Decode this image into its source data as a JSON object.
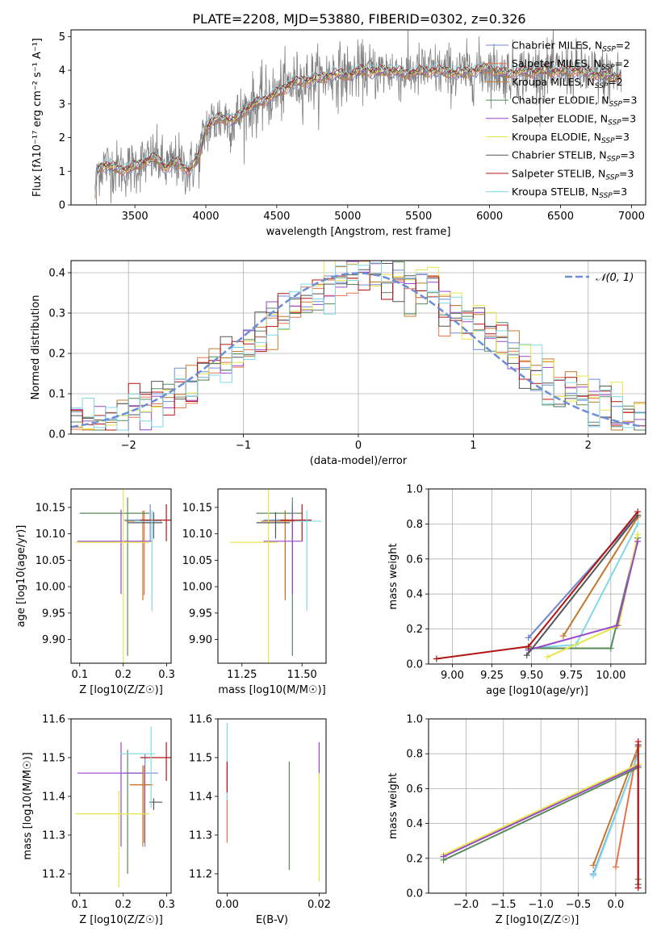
{
  "figure_title": "PLATE=2208, MJD=53880, FIBERID=0302, z=0.326",
  "colors": {
    "Chabrier MILES": "#6b8ed6",
    "Salpeter MILES": "#e8734a",
    "Kroupa MILES": "#c4782d",
    "Chabrier ELODIE": "#5a8a5a",
    "Salpeter ELODIE": "#9a47c8",
    "Kroupa ELODIE": "#e6e64c",
    "Chabrier STELIB": "#555555",
    "Salpeter STELIB": "#b41414",
    "Kroupa STELIB": "#7fd8e6",
    "observed": "#808080",
    "normal": "#6a8fd8"
  },
  "chart_data": [
    {
      "id": "spectrum",
      "type": "line",
      "xlabel": "wavelength [Angstrom, rest frame]",
      "ylabel": "Flux [f_λ 10^-17 erg cm^-2 s^-1 A^-1]",
      "xlim": [
        3050,
        7100
      ],
      "ylim": [
        0,
        5.2
      ],
      "xticks": [
        3500,
        4000,
        4500,
        5000,
        5500,
        6000,
        6500,
        7000
      ],
      "yticks": [
        0,
        1,
        2,
        3,
        4,
        5
      ],
      "legend_loc": "upper right",
      "observed_range": [
        3220,
        6930
      ],
      "model_knots": [
        [
          3220,
          0.3
        ],
        [
          3230,
          1.05
        ],
        [
          3280,
          1.2
        ],
        [
          3350,
          1.1
        ],
        [
          3450,
          1.05
        ],
        [
          3550,
          1.25
        ],
        [
          3650,
          1.4
        ],
        [
          3720,
          1.1
        ],
        [
          3800,
          1.3
        ],
        [
          3880,
          1.0
        ],
        [
          3950,
          1.4
        ],
        [
          4000,
          2.3
        ],
        [
          4100,
          2.6
        ],
        [
          4200,
          2.5
        ],
        [
          4300,
          2.9
        ],
        [
          4400,
          3.1
        ],
        [
          4500,
          3.3
        ],
        [
          4600,
          3.6
        ],
        [
          4700,
          3.7
        ],
        [
          4800,
          3.75
        ],
        [
          4900,
          3.9
        ],
        [
          5000,
          3.85
        ],
        [
          5100,
          4.0
        ],
        [
          5200,
          3.95
        ],
        [
          5300,
          4.0
        ],
        [
          5400,
          3.9
        ],
        [
          5500,
          3.95
        ],
        [
          5600,
          4.0
        ],
        [
          5700,
          3.95
        ],
        [
          5800,
          3.9
        ],
        [
          5900,
          4.0
        ],
        [
          6000,
          4.05
        ],
        [
          6100,
          3.9
        ],
        [
          6200,
          3.95
        ],
        [
          6300,
          3.95
        ],
        [
          6400,
          4.0
        ],
        [
          6500,
          3.95
        ],
        [
          6600,
          4.0
        ],
        [
          6700,
          3.9
        ],
        [
          6800,
          3.85
        ],
        [
          6930,
          3.8
        ]
      ],
      "series": [
        {
          "name": "Chabrier MILES, N_SSP=2",
          "color_key": "Chabrier MILES"
        },
        {
          "name": "Salpeter MILES, N_SSP=2",
          "color_key": "Salpeter MILES"
        },
        {
          "name": "Kroupa MILES, N_SSP=2",
          "color_key": "Kroupa MILES"
        },
        {
          "name": "Chabrier ELODIE, N_SSP=3",
          "color_key": "Chabrier ELODIE"
        },
        {
          "name": "Salpeter ELODIE, N_SSP=3",
          "color_key": "Salpeter ELODIE"
        },
        {
          "name": "Kroupa ELODIE, N_SSP=3",
          "color_key": "Kroupa ELODIE"
        },
        {
          "name": "Chabrier STELIB, N_SSP=3",
          "color_key": "Chabrier STELIB"
        },
        {
          "name": "Salpeter STELIB, N_SSP=3",
          "color_key": "Salpeter STELIB"
        },
        {
          "name": "Kroupa STELIB, N_SSP=3",
          "color_key": "Kroupa STELIB"
        }
      ]
    },
    {
      "id": "residuals",
      "type": "histogram",
      "xlabel": "(data-model)/error",
      "ylabel": "Normed distribution",
      "xlim": [
        -2.5,
        2.5
      ],
      "ylim": [
        0,
        0.43
      ],
      "xticks": [
        -2,
        -1,
        0,
        1,
        2
      ],
      "yticks": [
        0.0,
        0.1,
        0.2,
        0.3,
        0.4
      ],
      "grid": true,
      "bin_width": 0.1,
      "reference_label": "𝒩(0, 1)",
      "legend_loc": "upper right"
    },
    {
      "id": "age_vs_Z",
      "type": "errorbar",
      "xlabel": "Z [log10(Z/Z☉)]",
      "ylabel": "age  [log10(age/yr)]",
      "xlim": [
        0.08,
        0.31
      ],
      "ylim": [
        9.855,
        10.185
      ],
      "xticks": [
        0.1,
        0.2,
        0.3
      ],
      "yticks": [
        9.9,
        9.95,
        10.0,
        10.05,
        10.1,
        10.15
      ],
      "points": [
        {
          "c": "Chabrier MILES",
          "x": 0.262,
          "xerr": [
            0.06,
            0.02
          ],
          "y": 10.126,
          "yerr": [
            0.04,
            0.03
          ]
        },
        {
          "c": "Salpeter MILES",
          "x": 0.248,
          "xerr": [
            0.03,
            0.04
          ],
          "y": 10.124,
          "yerr": [
            0.14,
            0.02
          ]
        },
        {
          "c": "Kroupa MILES",
          "x": 0.245,
          "xerr": [
            0.04,
            0.03
          ],
          "y": 10.124,
          "yerr": [
            0.15,
            0.02
          ]
        },
        {
          "c": "Chabrier ELODIE",
          "x": 0.21,
          "xerr": [
            0.11,
            0.05
          ],
          "y": 10.139,
          "yerr": [
            0.27,
            0.03
          ]
        },
        {
          "c": "Salpeter ELODIE",
          "x": 0.195,
          "xerr": [
            0.1,
            0.07
          ],
          "y": 10.086,
          "yerr": [
            0.1,
            0.06
          ]
        },
        {
          "c": "Kroupa ELODIE",
          "x": 0.2,
          "xerr": [
            0.11,
            0.06
          ],
          "y": 10.084,
          "yerr": [
            0.25,
            0.1
          ]
        },
        {
          "c": "Chabrier STELIB",
          "x": 0.27,
          "xerr": [
            0.06,
            0.02
          ],
          "y": 10.121,
          "yerr": [
            0.03,
            0.02
          ]
        },
        {
          "c": "Salpeter STELIB",
          "x": 0.299,
          "xerr": [
            0.06,
            0.01
          ],
          "y": 10.126,
          "yerr": [
            0.04,
            0.03
          ]
        },
        {
          "c": "Kroupa STELIB",
          "x": 0.266,
          "xerr": [
            0.04,
            0.02
          ],
          "y": 10.124,
          "yerr": [
            0.17,
            0.02
          ]
        }
      ]
    },
    {
      "id": "age_vs_mass",
      "type": "errorbar",
      "xlabel": "mass [log10(M/M☉)]",
      "ylabel": "",
      "xlim": [
        11.15,
        11.6
      ],
      "ylim": [
        9.855,
        10.185
      ],
      "xticks": [
        11.25,
        11.5
      ],
      "yticks": [
        9.9,
        9.95,
        10.0,
        10.05,
        10.1,
        10.15
      ],
      "points": [
        {
          "c": "Chabrier MILES",
          "x": 11.46,
          "xerr": [
            0.12,
            0.06
          ],
          "y": 10.126,
          "yerr": [
            0.04,
            0.03
          ]
        },
        {
          "c": "Salpeter MILES",
          "x": 11.43,
          "xerr": [
            0.1,
            0.06
          ],
          "y": 10.124,
          "yerr": [
            0.14,
            0.02
          ]
        },
        {
          "c": "Kroupa MILES",
          "x": 11.43,
          "xerr": [
            0.1,
            0.05
          ],
          "y": 10.124,
          "yerr": [
            0.15,
            0.02
          ]
        },
        {
          "c": "Chabrier ELODIE",
          "x": 11.46,
          "xerr": [
            0.15,
            0.04
          ],
          "y": 10.139,
          "yerr": [
            0.27,
            0.03
          ]
        },
        {
          "c": "Salpeter ELODIE",
          "x": 11.46,
          "xerr": [
            0.12,
            0.04
          ],
          "y": 10.086,
          "yerr": [
            0.1,
            0.06
          ]
        },
        {
          "c": "Kroupa ELODIE",
          "x": 11.36,
          "xerr": [
            0.16,
            0.04
          ],
          "y": 10.084,
          "yerr": [
            0.25,
            0.1
          ]
        },
        {
          "c": "Chabrier STELIB",
          "x": 11.39,
          "xerr": [
            0.08,
            0.06
          ],
          "y": 10.121,
          "yerr": [
            0.03,
            0.02
          ]
        },
        {
          "c": "Salpeter STELIB",
          "x": 11.5,
          "xerr": [
            0.09,
            0.04
          ],
          "y": 10.126,
          "yerr": [
            0.04,
            0.03
          ]
        },
        {
          "c": "Kroupa STELIB",
          "x": 11.52,
          "xerr": [
            0.05,
            0.06
          ],
          "y": 10.124,
          "yerr": [
            0.17,
            0.02
          ]
        }
      ]
    },
    {
      "id": "weight_vs_age",
      "type": "line",
      "xlabel": "age  [log10(age/yr)]",
      "ylabel": "mass weight",
      "xlim": [
        8.85,
        10.22
      ],
      "ylim": [
        0,
        1
      ],
      "xticks": [
        9.0,
        9.25,
        9.5,
        9.75,
        10.0
      ],
      "yticks": [
        0.0,
        0.2,
        0.4,
        0.6,
        0.8,
        1.0
      ],
      "grid": true,
      "series": [
        {
          "c": "Salpeter MILES",
          "x": [
            9.48,
            10.17
          ],
          "y": [
            0.15,
            0.85
          ]
        },
        {
          "c": "Kroupa MILES",
          "x": [
            9.7,
            10.17
          ],
          "y": [
            0.16,
            0.84
          ]
        },
        {
          "c": "Chabrier MILES",
          "x": [
            9.48,
            10.17
          ],
          "y": [
            0.15,
            0.85
          ]
        },
        {
          "c": "Kroupa STELIB",
          "x": [
            9.48,
            9.78,
            10.17
          ],
          "y": [
            0.09,
            0.11,
            0.8
          ]
        },
        {
          "c": "Chabrier ELODIE",
          "x": [
            9.48,
            10.0,
            10.17
          ],
          "y": [
            0.09,
            0.09,
            0.72
          ]
        },
        {
          "c": "Kroupa ELODIE",
          "x": [
            9.6,
            10.05,
            10.17
          ],
          "y": [
            0.04,
            0.22,
            0.74
          ]
        },
        {
          "c": "Salpeter ELODIE",
          "x": [
            9.48,
            10.04,
            10.17
          ],
          "y": [
            0.08,
            0.22,
            0.7
          ]
        },
        {
          "c": "Chabrier STELIB",
          "x": [
            9.47,
            10.17
          ],
          "y": [
            0.05,
            0.85
          ]
        },
        {
          "c": "Salpeter STELIB",
          "x": [
            8.9,
            9.48,
            10.17
          ],
          "y": [
            0.03,
            0.1,
            0.87
          ]
        }
      ]
    },
    {
      "id": "mass_vs_Z",
      "type": "errorbar",
      "xlabel": "Z [log10(Z/Z☉)]",
      "ylabel": "mass [log10(M/M☉)]",
      "xlim": [
        0.08,
        0.31
      ],
      "ylim": [
        11.15,
        11.6
      ],
      "xticks": [
        0.1,
        0.2,
        0.3
      ],
      "yticks": [
        11.2,
        11.3,
        11.4,
        11.5,
        11.6
      ],
      "points": [
        {
          "c": "Chabrier MILES",
          "x": 0.25,
          "xerr": [
            0.05,
            0.03
          ],
          "y": 11.46,
          "yerr": [
            0.19,
            0.05
          ]
        },
        {
          "c": "Salpeter MILES",
          "x": 0.248,
          "xerr": [
            0.03,
            0.02
          ],
          "y": 11.43,
          "yerr": [
            0.15,
            0.05
          ]
        },
        {
          "c": "Kroupa MILES",
          "x": 0.245,
          "xerr": [
            0.03,
            0.02
          ],
          "y": 11.43,
          "yerr": [
            0.16,
            0.05
          ]
        },
        {
          "c": "Chabrier ELODIE",
          "x": 0.21,
          "xerr": [
            0.0,
            0.0
          ],
          "y": 11.46,
          "yerr": [
            0.26,
            0.06
          ]
        },
        {
          "c": "Salpeter ELODIE",
          "x": 0.195,
          "xerr": [
            0.1,
            0.05
          ],
          "y": 11.46,
          "yerr": [
            0.19,
            0.08
          ]
        },
        {
          "c": "Kroupa ELODIE",
          "x": 0.19,
          "xerr": [
            0.1,
            0.07
          ],
          "y": 11.355,
          "yerr": [
            0.19,
            0.06
          ]
        },
        {
          "c": "Chabrier STELIB",
          "x": 0.27,
          "xerr": [
            0.01,
            0.02
          ],
          "y": 11.385,
          "yerr": [
            0.02,
            0.01
          ]
        },
        {
          "c": "Salpeter STELIB",
          "x": 0.299,
          "xerr": [
            0.06,
            0.01
          ],
          "y": 11.5,
          "yerr": [
            0.06,
            0.04
          ]
        },
        {
          "c": "Kroupa STELIB",
          "x": 0.264,
          "xerr": [
            0.07,
            0.01
          ],
          "y": 11.51,
          "yerr": [
            0.14,
            0.07
          ]
        }
      ]
    },
    {
      "id": "mass_vs_EBV",
      "type": "errorbar",
      "xlabel": "E(B-V)",
      "ylabel": "",
      "xlim": [
        -0.002,
        0.0215
      ],
      "ylim": [
        11.15,
        11.6
      ],
      "xticks": [
        0.0,
        0.02
      ],
      "yticks": [
        11.2,
        11.3,
        11.4,
        11.5,
        11.6
      ],
      "points": [
        {
          "c": "Salpeter MILES",
          "x": 0.0,
          "xerr": [
            0,
            0
          ],
          "y": 11.43,
          "yerr": [
            0.15,
            0.05
          ]
        },
        {
          "c": "Kroupa STELIB",
          "x": 0.0,
          "xerr": [
            0,
            0
          ],
          "y": 11.51,
          "yerr": [
            0.12,
            0.08
          ]
        },
        {
          "c": "Salpeter STELIB",
          "x": 0.0,
          "xerr": [
            0,
            0
          ],
          "y": 11.46,
          "yerr": [
            0.05,
            0.03
          ]
        },
        {
          "c": "Chabrier ELODIE",
          "x": 0.0135,
          "xerr": [
            0,
            0
          ],
          "y": 11.35,
          "yerr": [
            0.14,
            0.14
          ]
        },
        {
          "c": "Salpeter ELODIE",
          "x": 0.02,
          "xerr": [
            0,
            0
          ],
          "y": 11.49,
          "yerr": [
            0.05,
            0.05
          ]
        },
        {
          "c": "Kroupa ELODIE",
          "x": 0.02,
          "xerr": [
            0,
            0
          ],
          "y": 11.32,
          "yerr": [
            0.14,
            0.14
          ]
        }
      ]
    },
    {
      "id": "weight_vs_Z",
      "type": "line",
      "xlabel": "Z [log10(Z/Z☉)]",
      "ylabel": "mass weight",
      "xlim": [
        -2.5,
        0.4
      ],
      "ylim": [
        0,
        1
      ],
      "xticks": [
        -2.0,
        -1.5,
        -1.0,
        -0.5,
        0.0
      ],
      "yticks": [
        0.0,
        0.2,
        0.4,
        0.6,
        0.8,
        1.0
      ],
      "grid": true,
      "series": [
        {
          "c": "Salpeter MILES",
          "x": [
            0.0,
            0.3
          ],
          "y": [
            0.15,
            0.85
          ]
        },
        {
          "c": "Kroupa MILES",
          "x": [
            -0.3,
            0.3
          ],
          "y": [
            0.16,
            0.84
          ]
        },
        {
          "c": "Chabrier MILES",
          "x": [
            -0.3,
            0.3
          ],
          "y": [
            0.11,
            0.8
          ]
        },
        {
          "c": "Kroupa STELIB",
          "x": [
            -0.3,
            0.3
          ],
          "y": [
            0.1,
            0.8
          ]
        },
        {
          "c": "Kroupa ELODIE",
          "x": [
            -2.3,
            0.3
          ],
          "y": [
            0.22,
            0.74
          ]
        },
        {
          "c": "Salpeter ELODIE",
          "x": [
            -2.3,
            0.3
          ],
          "y": [
            0.21,
            0.73
          ]
        },
        {
          "c": "Chabrier ELODIE",
          "x": [
            -2.3,
            0.3,
            0.3
          ],
          "y": [
            0.19,
            0.72,
            0.08
          ]
        },
        {
          "c": "Chabrier STELIB",
          "x": [
            0.3,
            0.3
          ],
          "y": [
            0.05,
            0.85
          ]
        },
        {
          "c": "Salpeter STELIB",
          "x": [
            0.3,
            0.3
          ],
          "y": [
            0.03,
            0.87
          ]
        }
      ]
    }
  ]
}
